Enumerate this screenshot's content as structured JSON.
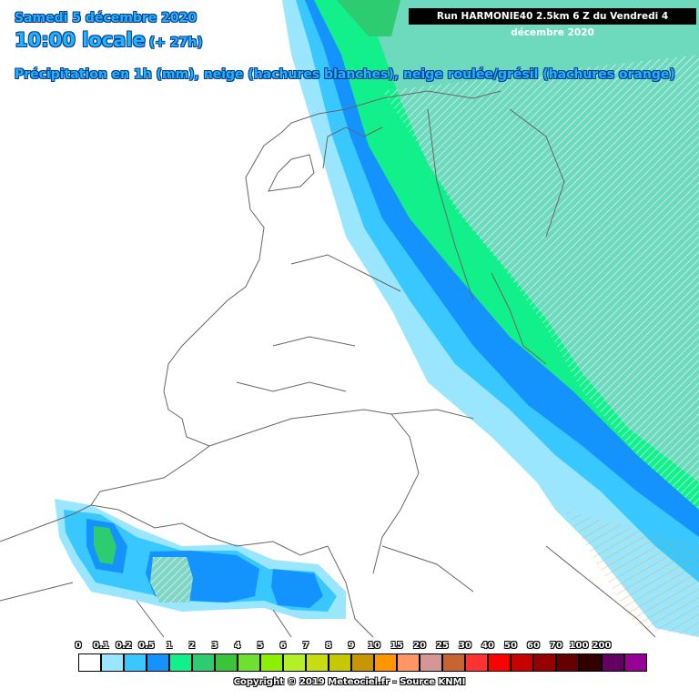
{
  "header": {
    "date": "Samedi 5 décembre 2020",
    "time": "10:00 locale",
    "lead": "(+ 27h)",
    "description": "Précipitation en 1h (mm), neige (hachures blanches), neige roulée/grésil (hachures orange)"
  },
  "run_label": "Run HARMONIE40 2.5km 6 Z du Vendredi 4 décembre 2020",
  "legend": {
    "ticks": [
      "0",
      "0.1",
      "0.2",
      "0.5",
      "1",
      "2",
      "3",
      "4",
      "5",
      "6",
      "7",
      "8",
      "9",
      "10",
      "15",
      "20",
      "25",
      "30",
      "40",
      "50",
      "60",
      "70",
      "100",
      "200"
    ],
    "colors": [
      "#ffffff",
      "#9be6ff",
      "#38c8ff",
      "#1493ff",
      "#12f08c",
      "#2ecc71",
      "#3cc33c",
      "#6ee030",
      "#8cf000",
      "#b4f028",
      "#c8dc14",
      "#c8c800",
      "#c89600",
      "#ff9600",
      "#ff9664",
      "#d79696",
      "#c86432",
      "#ff3232",
      "#ff0000",
      "#c80000",
      "#960000",
      "#640000",
      "#320000",
      "#640064"
    ],
    "extra_color": "#960096"
  },
  "copyright": "Copyright © 2019 Meteociel.fr - Source KNMI",
  "map_colors": {
    "land": "#ffffff",
    "border": "#666666",
    "very_light": "#9be6ff",
    "light": "#38c8ff",
    "medium": "#1493ff",
    "heavy": "#12f08c",
    "heavier": "#2ecc71",
    "snow_area": "#7fd6c6"
  }
}
